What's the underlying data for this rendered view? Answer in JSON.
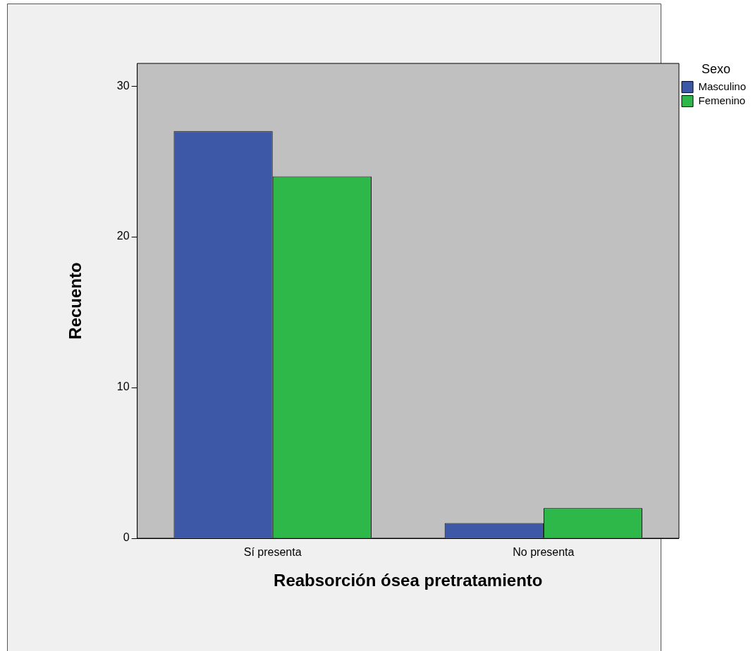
{
  "chart_data": {
    "type": "bar",
    "xlabel": "Reabsorción ósea pretratamiento",
    "ylabel": "Recuento",
    "legend_title": "Sexo",
    "legend": "top right",
    "categories": [
      "Sí presenta",
      "No presenta"
    ],
    "series": [
      {
        "name": "Masculino",
        "color": "#3e58a8",
        "values": [
          27,
          1
        ]
      },
      {
        "name": "Femenino",
        "color": "#2eb84a",
        "values": [
          24,
          2
        ]
      }
    ],
    "ylim": [
      0,
      31.5
    ],
    "yticks": [
      0,
      10,
      20,
      30
    ],
    "grid": false
  }
}
